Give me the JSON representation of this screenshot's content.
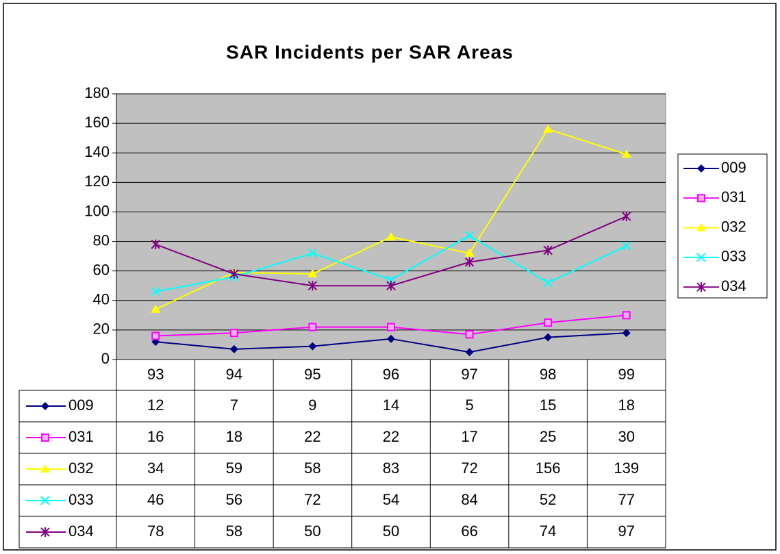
{
  "chart_data": {
    "type": "line",
    "title": "SAR Incidents per SAR Areas",
    "categories": [
      "93",
      "94",
      "95",
      "96",
      "97",
      "98",
      "99"
    ],
    "series": [
      {
        "name": "009",
        "color": "#000080",
        "marker": "diamond",
        "values": [
          12,
          7,
          9,
          14,
          5,
          15,
          18
        ]
      },
      {
        "name": "031",
        "color": "#ff00ff",
        "marker": "square",
        "values": [
          16,
          18,
          22,
          22,
          17,
          25,
          30
        ]
      },
      {
        "name": "032",
        "color": "#ffff00",
        "marker": "triangle",
        "values": [
          34,
          59,
          58,
          83,
          72,
          156,
          139
        ]
      },
      {
        "name": "033",
        "color": "#00ffff",
        "marker": "x",
        "values": [
          46,
          56,
          72,
          54,
          84,
          52,
          77
        ]
      },
      {
        "name": "034",
        "color": "#800080",
        "marker": "star",
        "values": [
          78,
          58,
          50,
          50,
          66,
          74,
          97
        ]
      }
    ],
    "ylim": [
      0,
      180
    ],
    "yticks": [
      0,
      20,
      40,
      60,
      80,
      100,
      120,
      140,
      160,
      180
    ],
    "grid": true,
    "plot_background": "#c0c0c0",
    "legend": "right",
    "data_table": true
  }
}
